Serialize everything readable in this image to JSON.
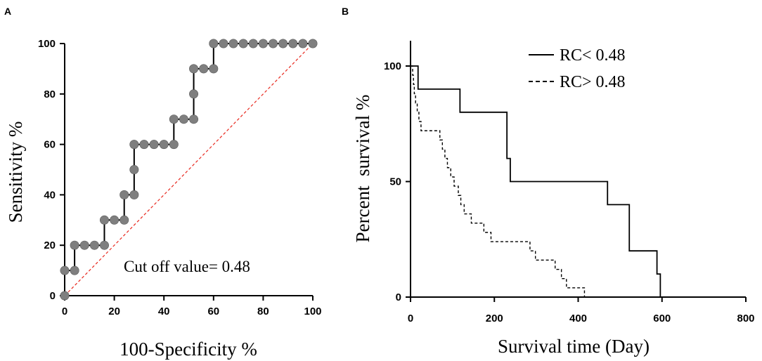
{
  "chart_data": [
    {
      "panel": "A",
      "type": "line",
      "subtype": "roc-step-with-points",
      "xlabel": "100-Specificity %",
      "ylabel": "Sensitivity %",
      "xlim": [
        0,
        100
      ],
      "ylim": [
        0,
        100
      ],
      "xticks": [
        0,
        20,
        40,
        60,
        80,
        100
      ],
      "yticks": [
        0,
        20,
        40,
        60,
        80,
        100
      ],
      "annotation": "Cut off value= 0.48",
      "colors": {
        "curve": "#000000",
        "points": "#7f7f7f",
        "reference": "#e8281e"
      },
      "roc_points": [
        [
          0,
          0
        ],
        [
          0,
          10
        ],
        [
          4,
          10
        ],
        [
          4,
          20
        ],
        [
          8,
          20
        ],
        [
          12,
          20
        ],
        [
          16,
          20
        ],
        [
          16,
          30
        ],
        [
          20,
          30
        ],
        [
          24,
          30
        ],
        [
          24,
          40
        ],
        [
          28,
          40
        ],
        [
          28,
          50
        ],
        [
          28,
          60
        ],
        [
          32,
          60
        ],
        [
          36,
          60
        ],
        [
          40,
          60
        ],
        [
          44,
          60
        ],
        [
          44,
          70
        ],
        [
          48,
          70
        ],
        [
          52,
          70
        ],
        [
          52,
          80
        ],
        [
          52,
          90
        ],
        [
          56,
          90
        ],
        [
          60,
          90
        ],
        [
          60,
          100
        ],
        [
          64,
          100
        ],
        [
          68,
          100
        ],
        [
          72,
          100
        ],
        [
          76,
          100
        ],
        [
          80,
          100
        ],
        [
          84,
          100
        ],
        [
          88,
          100
        ],
        [
          92,
          100
        ],
        [
          96,
          100
        ],
        [
          100,
          100
        ]
      ],
      "reference_line": [
        [
          0,
          0
        ],
        [
          100,
          100
        ]
      ]
    },
    {
      "panel": "B",
      "type": "line",
      "subtype": "kaplan-meier",
      "xlabel": "Survival time (Day)",
      "ylabel": "Percent  survival %",
      "xlim": [
        0,
        800
      ],
      "ylim": [
        0,
        110
      ],
      "xticks": [
        0,
        200,
        400,
        600,
        800
      ],
      "yticks": [
        0,
        50,
        100
      ],
      "legend_position": "top-right",
      "series": [
        {
          "name": "RC< 0.48",
          "style": "solid",
          "points": [
            [
              0,
              100
            ],
            [
              18,
              100
            ],
            [
              18,
              90
            ],
            [
              118,
              90
            ],
            [
              118,
              80
            ],
            [
              230,
              80
            ],
            [
              230,
              60
            ],
            [
              238,
              60
            ],
            [
              238,
              50
            ],
            [
              470,
              50
            ],
            [
              470,
              40
            ],
            [
              522,
              40
            ],
            [
              522,
              20
            ],
            [
              588,
              20
            ],
            [
              588,
              10
            ],
            [
              596,
              10
            ],
            [
              596,
              0
            ]
          ]
        },
        {
          "name": "RC> 0.48",
          "style": "dashed",
          "points": [
            [
              0,
              100
            ],
            [
              5,
              100
            ],
            [
              5,
              96
            ],
            [
              7,
              96
            ],
            [
              7,
              92
            ],
            [
              9,
              92
            ],
            [
              9,
              88
            ],
            [
              12,
              88
            ],
            [
              12,
              84
            ],
            [
              16,
              84
            ],
            [
              16,
              80
            ],
            [
              20,
              80
            ],
            [
              20,
              76
            ],
            [
              25,
              76
            ],
            [
              25,
              72
            ],
            [
              70,
              72
            ],
            [
              70,
              68
            ],
            [
              76,
              68
            ],
            [
              76,
              64
            ],
            [
              82,
              64
            ],
            [
              82,
              60
            ],
            [
              88,
              60
            ],
            [
              88,
              56
            ],
            [
              96,
              56
            ],
            [
              96,
              52
            ],
            [
              104,
              52
            ],
            [
              104,
              48
            ],
            [
              114,
              48
            ],
            [
              114,
              44
            ],
            [
              120,
              44
            ],
            [
              120,
              40
            ],
            [
              128,
              40
            ],
            [
              128,
              36
            ],
            [
              145,
              36
            ],
            [
              145,
              32
            ],
            [
              175,
              32
            ],
            [
              175,
              28
            ],
            [
              192,
              28
            ],
            [
              192,
              24
            ],
            [
              285,
              24
            ],
            [
              285,
              20
            ],
            [
              298,
              20
            ],
            [
              298,
              16
            ],
            [
              345,
              16
            ],
            [
              345,
              12
            ],
            [
              360,
              12
            ],
            [
              360,
              8
            ],
            [
              372,
              8
            ],
            [
              372,
              4
            ],
            [
              415,
              4
            ],
            [
              415,
              0
            ],
            [
              430,
              0
            ]
          ]
        }
      ]
    }
  ]
}
